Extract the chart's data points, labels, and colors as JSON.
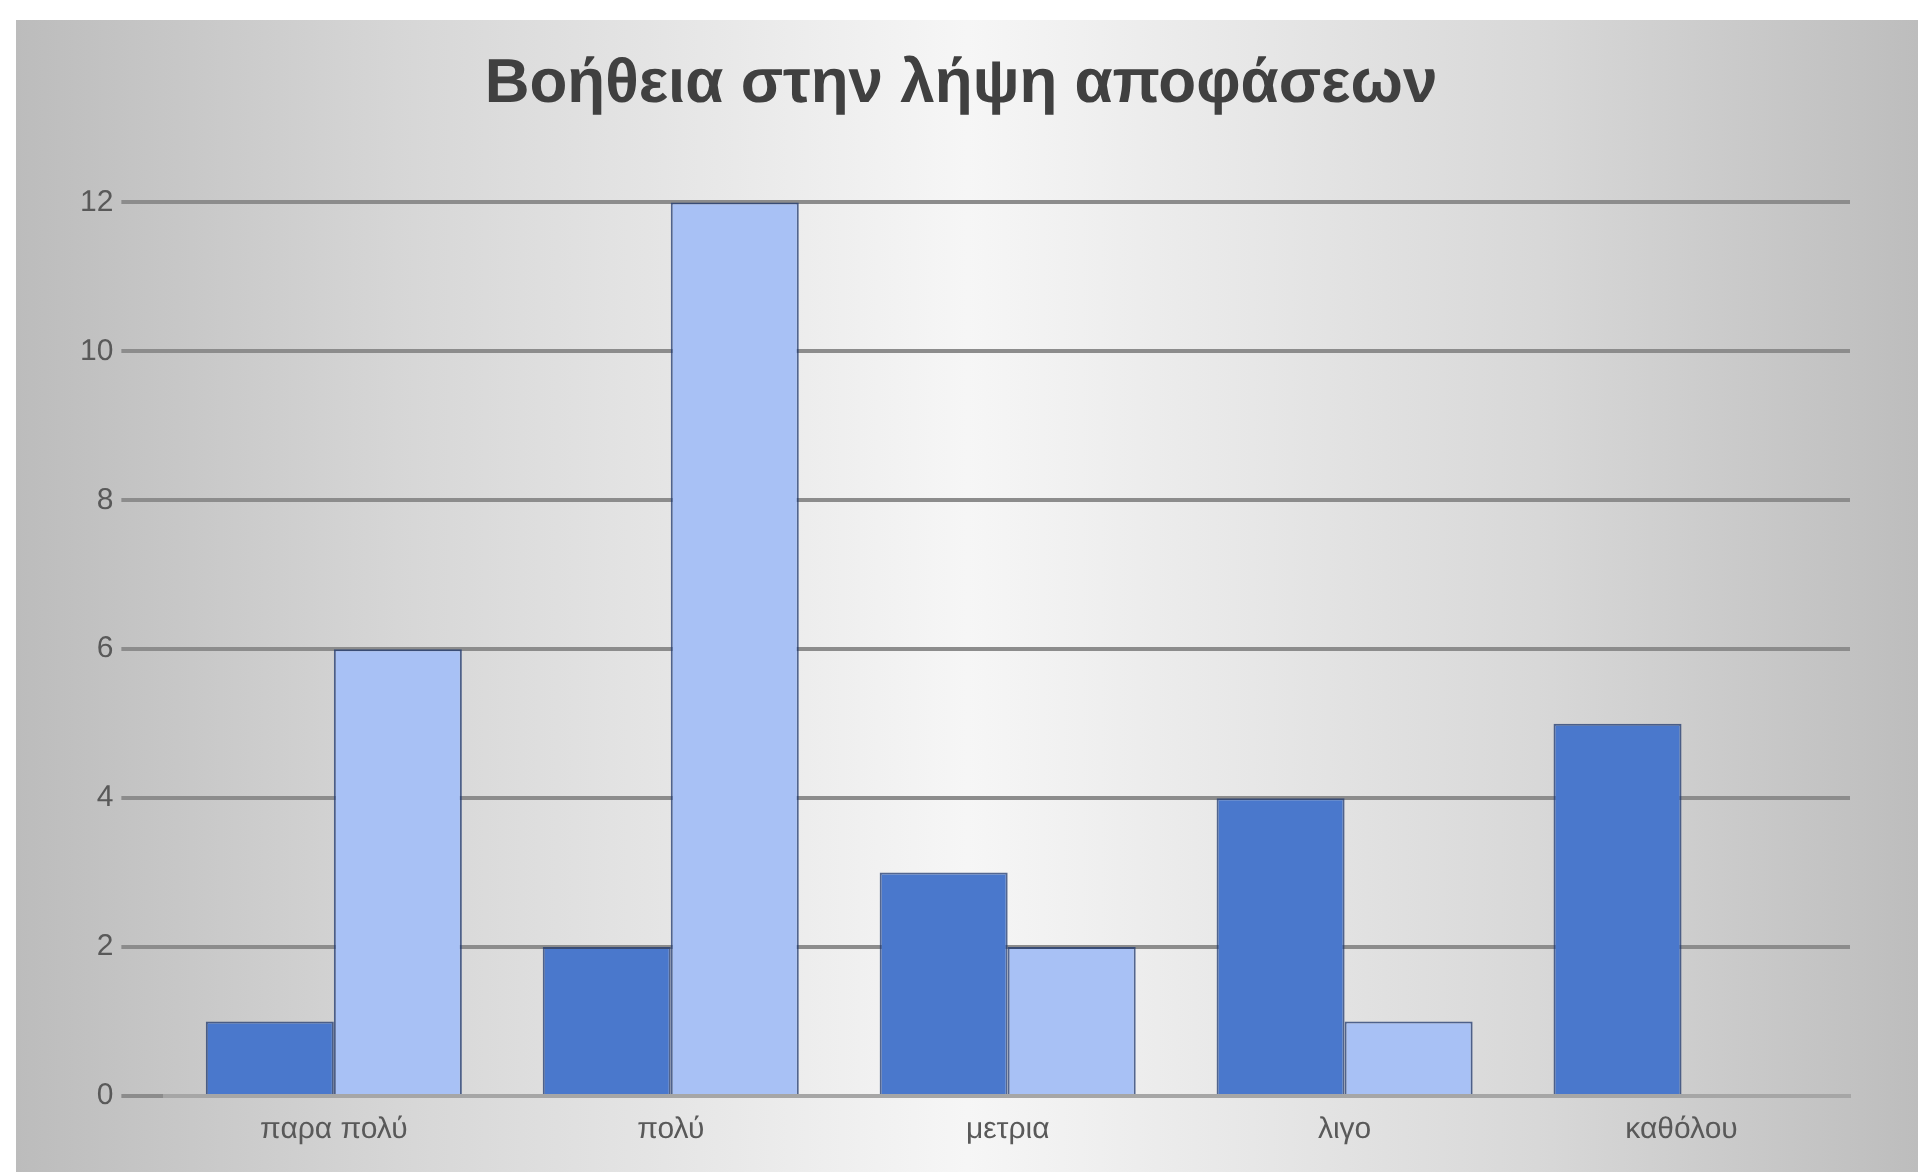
{
  "chart_data": {
    "type": "bar",
    "title": "Βοήθεια στην λήψη αποφάσεων",
    "categories": [
      "παρα πολύ",
      "πολύ",
      "μετρια",
      "λιγο",
      "καθόλου"
    ],
    "series": [
      {
        "color": "#4a78cc",
        "values": [
          1,
          2,
          3,
          4,
          5
        ]
      },
      {
        "color": "#a8c1f5",
        "values": [
          6,
          12,
          2,
          1,
          null
        ]
      }
    ],
    "ylim": [
      0,
      12
    ],
    "yticks": [
      0,
      2,
      4,
      6,
      8,
      10,
      12
    ],
    "grid": "y"
  }
}
